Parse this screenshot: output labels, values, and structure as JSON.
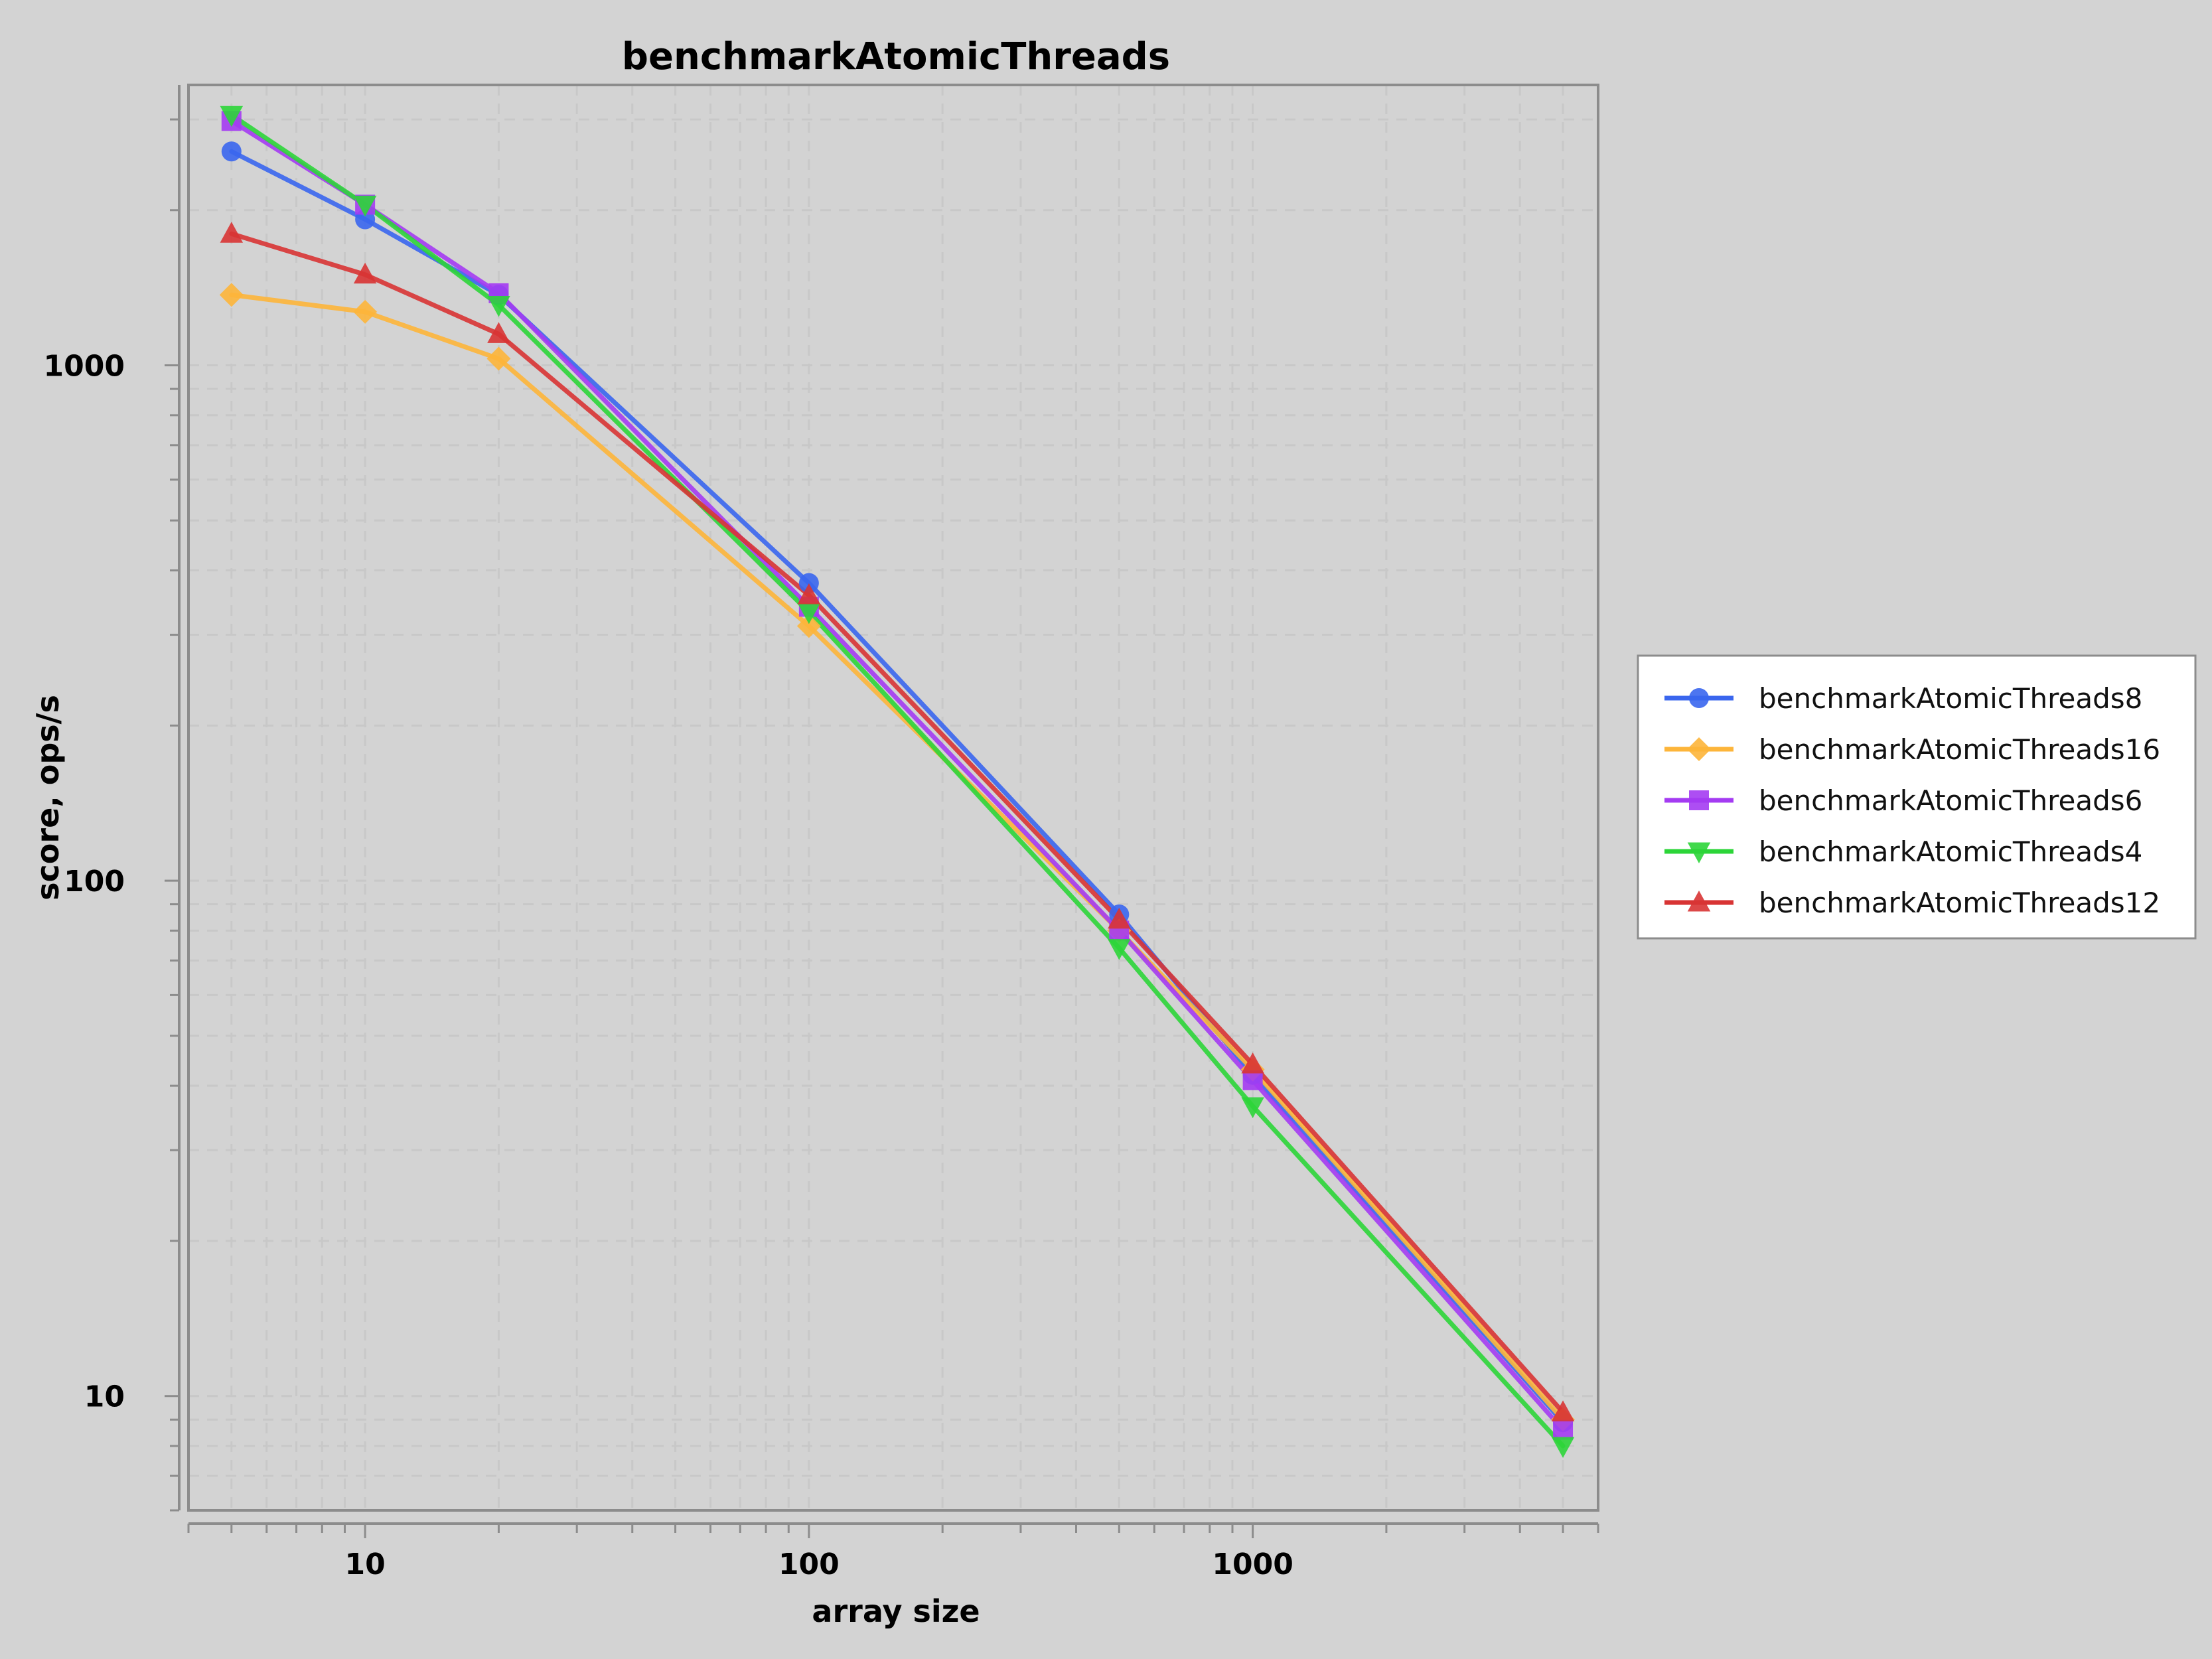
{
  "chart_data": {
    "type": "line",
    "title": "benchmarkAtomicThreads",
    "xlabel": "array size",
    "ylabel": "score, ops/s",
    "x_scale": "log",
    "y_scale": "log",
    "xlim": [
      4,
      6000
    ],
    "ylim": [
      6,
      3500
    ],
    "x_tick_labels": [
      "10",
      "100",
      "1000"
    ],
    "y_tick_labels": [
      "10",
      "100",
      "1000"
    ],
    "grid": true,
    "legend_position": "right",
    "x": [
      5,
      10,
      20,
      100,
      500,
      1000,
      5000
    ],
    "series": [
      {
        "name": "benchmarkAtomicThreads8",
        "marker": "circle",
        "color": "#3a66ee",
        "values": [
          2600,
          1920,
          1370,
          378,
          86,
          42,
          8.9
        ]
      },
      {
        "name": "benchmarkAtomicThreads16",
        "marker": "diamond",
        "color": "#fdb53a",
        "values": [
          1370,
          1270,
          1030,
          312,
          80,
          43,
          9.0
        ]
      },
      {
        "name": "benchmarkAtomicThreads6",
        "marker": "square",
        "color": "#a43bf2",
        "values": [
          2980,
          2050,
          1380,
          340,
          80,
          41,
          8.6
        ]
      },
      {
        "name": "benchmarkAtomicThreads4",
        "marker": "triangle-down",
        "color": "#2cd538",
        "values": [
          3060,
          2050,
          1310,
          332,
          74,
          36.5,
          8.0
        ]
      },
      {
        "name": "benchmarkAtomicThreads12",
        "marker": "triangle-up",
        "color": "#d83434",
        "values": [
          1800,
          1500,
          1150,
          358,
          84,
          44,
          9.3
        ]
      }
    ]
  }
}
